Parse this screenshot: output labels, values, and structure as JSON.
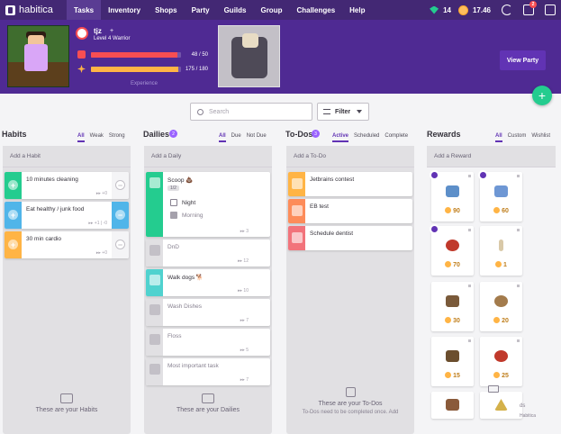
{
  "nav": {
    "logo": "habitica",
    "items": [
      "Tasks",
      "Inventory",
      "Shops",
      "Party",
      "Guilds",
      "Group",
      "Challenges",
      "Help"
    ],
    "gems": "14",
    "gold": "17.46",
    "notifications": "2"
  },
  "header": {
    "username": "tjz",
    "plus": "+",
    "level": "Level 4 Warrior",
    "hp_text": "48 / 50",
    "hp_frac": 0.96,
    "xp_text": "175 / 180",
    "xp_frac": 0.97,
    "experience_label": "Experience",
    "view_party": "View Party"
  },
  "colors": {
    "brand": "#432874",
    "hp": "#f74e52",
    "xp": "#ffb445",
    "green": "#24cc8f"
  },
  "search": {
    "placeholder": "Search"
  },
  "filter_label": "Filter",
  "habits": {
    "title": "Habits",
    "filters": [
      "All",
      "Weak",
      "Strong"
    ],
    "add": "Add a Habit",
    "items": [
      {
        "text": "10 minutes cleaning",
        "meta": "▸▸ +0"
      },
      {
        "text": "Eat healthy / junk food",
        "meta": "▸▸ +1 | -0"
      },
      {
        "text": "30 min cardio",
        "meta": "▸▸ +0"
      }
    ],
    "empty": "These are your Habits"
  },
  "dailies": {
    "title": "Dailies",
    "badge": "2",
    "filters": [
      "All",
      "Due",
      "Not Due"
    ],
    "add": "Add a Daily",
    "scoop": "Scoop 💩",
    "checklist_tag": "1/2",
    "check1": "Night",
    "check2": "Morning",
    "items": [
      {
        "text": "Scoop 💩",
        "meta": "▸▸ 3"
      },
      {
        "text": "DnD",
        "meta": "▸▸ 12"
      },
      {
        "text": "Walk dogs 🐕",
        "meta": "▸▸ 10"
      },
      {
        "text": "Wash Dishes",
        "meta": "▸▸ 7"
      },
      {
        "text": "Floss",
        "meta": "▸▸ 5"
      },
      {
        "text": "Most important task",
        "meta": "▸▸ 7"
      }
    ],
    "empty": "These are your Dailies"
  },
  "todos": {
    "title": "To-Dos",
    "badge": "3",
    "filters": [
      "Active",
      "Scheduled",
      "Complete"
    ],
    "add": "Add a To-Do",
    "items": [
      {
        "text": "Jetbrains contest"
      },
      {
        "text": "EB test"
      },
      {
        "text": "Schedule dentist"
      }
    ],
    "empty": "These are your To-Dos",
    "empty_sub": "To-Dos need to be completed once. Add"
  },
  "rewards": {
    "title": "Rewards",
    "filters": [
      "All",
      "Custom",
      "Wishlist"
    ],
    "add": "Add a Reward",
    "prices": [
      "90",
      "60",
      "70",
      "1",
      "30",
      "20",
      "15",
      "25"
    ],
    "side_text_1": "ds",
    "side_text_2": "Habitica"
  }
}
